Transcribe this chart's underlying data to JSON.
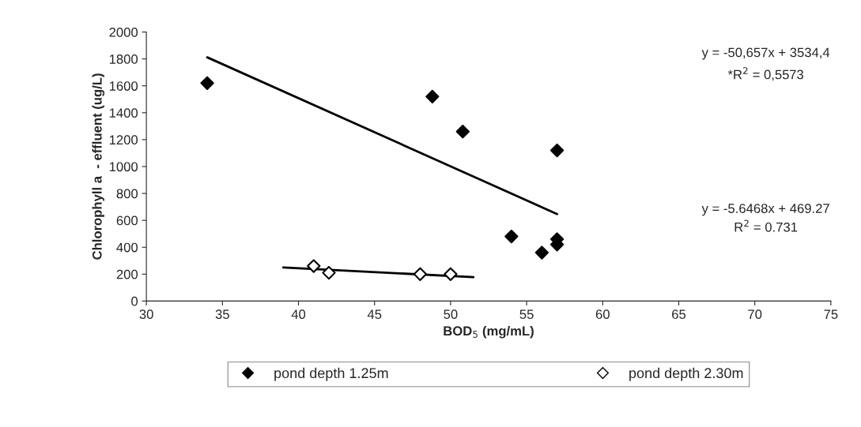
{
  "chart_data": {
    "type": "scatter",
    "xlabel": "BOD$_{5}$ (mg/mL)",
    "ylabel": "Chlorophyll a  - effluent (ug/L)",
    "xlim": [
      30,
      75
    ],
    "xticks": [
      30,
      35,
      40,
      45,
      50,
      55,
      60,
      65,
      70,
      75
    ],
    "ylim": [
      0,
      2000
    ],
    "yticks": [
      0,
      200,
      400,
      600,
      800,
      1000,
      1200,
      1400,
      1600,
      1800,
      2000
    ],
    "grid": false,
    "legend": "bottom",
    "marker": "diamond",
    "series": [
      {
        "name": "pond depth 1.25m",
        "color": "#000000",
        "x": [
          34,
          48.8,
          50.8,
          57,
          54,
          56,
          57,
          57
        ],
        "values": [
          1620,
          1520,
          1260,
          1120,
          480,
          360,
          460,
          420
        ]
      },
      {
        "name": "pond depth 2.30m",
        "color": "#ffffff",
        "x": [
          41,
          42,
          48,
          50
        ],
        "values": [
          260,
          210,
          200,
          200
        ]
      },
      {
        "type": "line",
        "color": "#000000",
        "x": [
          34,
          57
        ],
        "values": [
          1812,
          647
        ],
        "marker": "none"
      },
      {
        "type": "line",
        "color": "#000000",
        "x": [
          39,
          51.5
        ],
        "values": [
          249,
          178
        ],
        "marker": "none"
      }
    ],
    "annotations": [
      "y = -50,657x + 3534,4",
      "*R$^{2}$ = 0,5573",
      "y = -5.6468x + 469.27",
      "R$^{2}$ = 0.731"
    ]
  }
}
